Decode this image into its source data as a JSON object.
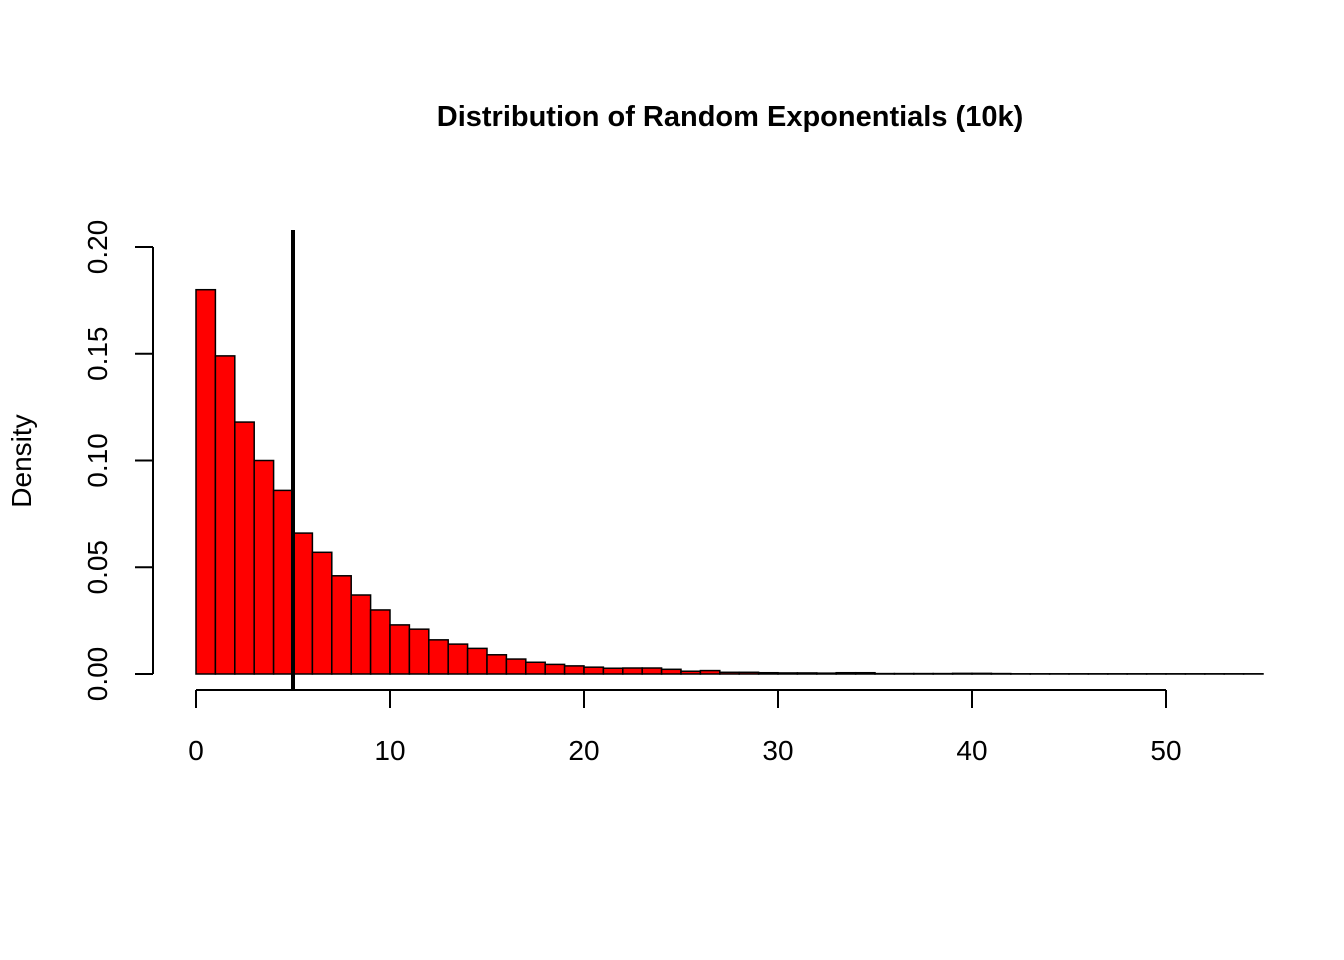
{
  "chart_data": {
    "type": "bar",
    "title": "Distribution of Random Exponentials (10k)",
    "xlabel": "",
    "ylabel": "Density",
    "xlim": [
      0,
      55
    ],
    "ylim": [
      0,
      0.2
    ],
    "x_ticks": [
      "0",
      "10",
      "20",
      "30",
      "40",
      "50"
    ],
    "y_ticks": [
      "0.00",
      "0.05",
      "0.10",
      "0.15",
      "0.20"
    ],
    "bin_width": 1,
    "bin_start": 0,
    "values": [
      0.18,
      0.149,
      0.118,
      0.1,
      0.086,
      0.066,
      0.057,
      0.046,
      0.037,
      0.03,
      0.023,
      0.021,
      0.016,
      0.014,
      0.012,
      0.009,
      0.007,
      0.0055,
      0.0045,
      0.0038,
      0.0032,
      0.0027,
      0.0028,
      0.0028,
      0.0022,
      0.0013,
      0.0016,
      0.0008,
      0.0008,
      0.0006,
      0.0005,
      0.0005,
      0.0004,
      0.0006,
      0.0006,
      0.0002,
      0.0002,
      0.0002,
      0.0002,
      0.0003,
      0.0003,
      0.0002,
      0.0001,
      0.0001,
      0.0001,
      0.0001,
      0.0001,
      0.0001,
      0.0001,
      0.0001,
      0.0001,
      0.0001,
      0.0001,
      0.0001,
      0.0001
    ],
    "vline_x": 5,
    "grid": false,
    "colors": {
      "bar_fill": "#ff0000",
      "bar_stroke": "#000000",
      "vline": "#000000"
    }
  }
}
